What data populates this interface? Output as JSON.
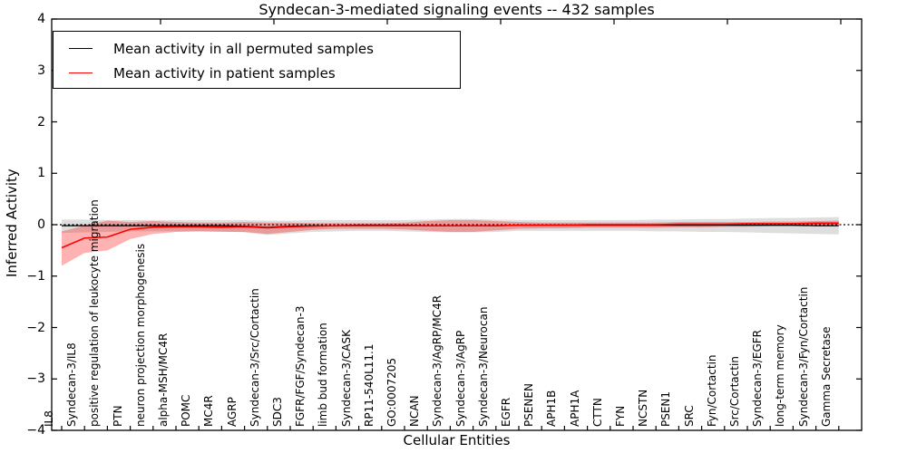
{
  "chart_data": {
    "type": "line",
    "title": "Syndecan-3-mediated signaling events -- 432 samples",
    "xlabel": "Cellular Entities",
    "ylabel": "Inferred Activity",
    "ylim": [
      -4,
      4
    ],
    "yticks": [
      -4,
      -3,
      -2,
      -1,
      0,
      1,
      2,
      3,
      4
    ],
    "grid": false,
    "legend_position": "upper left",
    "zero_reference_line": {
      "style": "dotted",
      "color": "#000000",
      "y": 0
    },
    "categories": [
      "IL8",
      "Syndecan-3/IL8",
      "positive regulation of leukocyte migration",
      "PTN",
      "neuron projection morphogenesis",
      "alpha-MSH/MC4R",
      "POMC",
      "MC4R",
      "AGRP",
      "Syndecan-3/Src/Cortactin",
      "SDC3",
      "FGFR/FGF/Syndecan-3",
      "limb bud formation",
      "Syndecan-3/CASK",
      "RP11-540L11.1",
      "GO:0007205",
      "NCAN",
      "Syndecan-3/AgRP/MC4R",
      "Syndecan-3/AgRP",
      "Syndecan-3/Neurocan",
      "EGFR",
      "PSENEN",
      "APH1B",
      "APH1A",
      "CTTN",
      "FYN",
      "NCSTN",
      "PSEN1",
      "SRC",
      "Fyn/Cortactin",
      "Src/Cortactin",
      "Syndecan-3/EGFR",
      "long-term memory",
      "Syndecan-3/Fyn/Cortactin",
      "Gamma Secretase"
    ],
    "series": [
      {
        "name": "Mean activity in all permuted samples",
        "color": "#000000",
        "band_color": "rgba(0,0,0,0.13)",
        "values": [
          -0.02,
          -0.02,
          -0.02,
          -0.02,
          -0.02,
          -0.02,
          -0.02,
          -0.02,
          -0.03,
          -0.05,
          -0.03,
          -0.02,
          -0.02,
          -0.01,
          -0.01,
          -0.01,
          -0.02,
          -0.02,
          -0.02,
          -0.02,
          -0.01,
          -0.01,
          -0.01,
          -0.01,
          -0.01,
          -0.01,
          -0.01,
          -0.01,
          -0.01,
          -0.01,
          -0.01,
          -0.01,
          -0.01,
          -0.02,
          -0.02
        ],
        "band_upper": [
          0.1,
          0.1,
          0.09,
          0.09,
          0.09,
          0.09,
          0.09,
          0.09,
          0.09,
          0.08,
          0.08,
          0.09,
          0.09,
          0.09,
          0.09,
          0.09,
          0.1,
          0.11,
          0.11,
          0.1,
          0.09,
          0.09,
          0.09,
          0.09,
          0.09,
          0.09,
          0.1,
          0.1,
          0.11,
          0.11,
          0.12,
          0.13,
          0.13,
          0.14,
          0.15
        ],
        "band_lower": [
          -0.16,
          -0.15,
          -0.14,
          -0.13,
          -0.13,
          -0.13,
          -0.13,
          -0.13,
          -0.15,
          -0.2,
          -0.17,
          -0.14,
          -0.13,
          -0.12,
          -0.12,
          -0.13,
          -0.14,
          -0.15,
          -0.15,
          -0.14,
          -0.12,
          -0.12,
          -0.12,
          -0.12,
          -0.12,
          -0.12,
          -0.13,
          -0.13,
          -0.14,
          -0.14,
          -0.15,
          -0.16,
          -0.17,
          -0.18,
          -0.19
        ]
      },
      {
        "name": "Mean activity in patient samples",
        "color": "#ff0000",
        "band_color": "rgba(255,0,0,0.30)",
        "values": [
          -0.45,
          -0.26,
          -0.24,
          -0.09,
          -0.05,
          -0.04,
          -0.04,
          -0.05,
          -0.04,
          -0.06,
          -0.04,
          -0.03,
          -0.02,
          -0.02,
          -0.02,
          -0.02,
          -0.02,
          -0.02,
          -0.02,
          -0.02,
          -0.01,
          -0.01,
          -0.01,
          0.0,
          0.0,
          0.0,
          0.0,
          0.01,
          0.01,
          0.01,
          0.02,
          0.02,
          0.02,
          0.03,
          0.03
        ],
        "band_upper": [
          -0.13,
          -0.02,
          0.08,
          0.05,
          0.07,
          0.05,
          0.04,
          0.04,
          0.05,
          0.04,
          0.04,
          0.03,
          0.03,
          0.03,
          0.03,
          0.04,
          0.07,
          0.09,
          0.09,
          0.07,
          0.05,
          0.04,
          0.04,
          0.04,
          0.04,
          0.04,
          0.04,
          0.05,
          0.05,
          0.05,
          0.05,
          0.06,
          0.06,
          0.07,
          0.08
        ],
        "band_lower": [
          -0.8,
          -0.55,
          -0.5,
          -0.28,
          -0.18,
          -0.14,
          -0.13,
          -0.14,
          -0.14,
          -0.18,
          -0.14,
          -0.1,
          -0.08,
          -0.08,
          -0.08,
          -0.09,
          -0.12,
          -0.14,
          -0.14,
          -0.11,
          -0.08,
          -0.07,
          -0.07,
          -0.06,
          -0.06,
          -0.06,
          -0.06,
          -0.05,
          -0.05,
          -0.04,
          -0.04,
          -0.03,
          -0.03,
          -0.02,
          -0.02
        ]
      }
    ]
  }
}
